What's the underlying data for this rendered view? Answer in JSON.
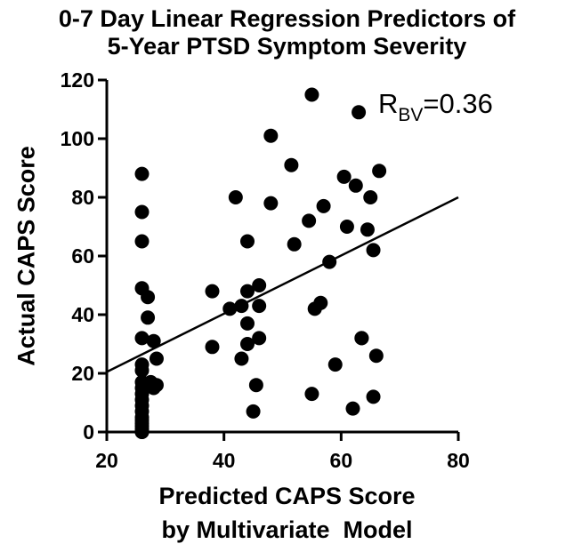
{
  "chart_data": {
    "type": "scatter",
    "title_line1": "0-7 Day Linear Regression Predictors of",
    "title_line2": "5-Year PTSD Symptom Severity",
    "xlabel_line1": "Predicted CAPS Score",
    "xlabel_line2": "by Multivariate  Model",
    "ylabel": "Actual CAPS Score",
    "xlim": [
      20,
      80
    ],
    "ylim": [
      0,
      120
    ],
    "xticks": [
      20,
      40,
      60,
      80
    ],
    "yticks": [
      0,
      20,
      40,
      60,
      80,
      100,
      120
    ],
    "annotation": {
      "base": "R",
      "subscript": "BV",
      "rest": "=0.36"
    },
    "regression_line": {
      "x": [
        20,
        80
      ],
      "y": [
        20.5,
        80
      ]
    },
    "points": {
      "x": [
        26,
        26,
        26,
        26,
        26,
        26,
        26,
        26,
        26,
        26,
        26,
        26,
        26,
        26,
        26,
        26,
        26,
        26,
        26,
        26,
        27,
        27,
        27.5,
        28,
        28,
        28.5,
        28.5,
        38,
        38,
        41,
        42,
        43,
        43,
        44,
        44,
        44,
        44,
        45,
        45.5,
        46,
        46,
        46,
        48,
        48,
        51.5,
        52,
        54.5,
        55,
        55,
        55.5,
        56.5,
        57,
        58,
        59,
        60.5,
        61,
        62,
        62.5,
        63,
        63.5,
        63.5,
        64.5,
        65,
        65.5,
        65.5,
        66,
        66.5
      ],
      "y": [
        88,
        75,
        65,
        49,
        32,
        23,
        21,
        17,
        15,
        13,
        11,
        9,
        7,
        5,
        4,
        3,
        2,
        1,
        0,
        0,
        46,
        39,
        17,
        15,
        31,
        25,
        16,
        48,
        29,
        42,
        80,
        43,
        25,
        65,
        48,
        37,
        30,
        7,
        16,
        50,
        43,
        32,
        101,
        78,
        91,
        64,
        72,
        115,
        13,
        42,
        44,
        77,
        58,
        23,
        87,
        70,
        8,
        84,
        109,
        32,
        32,
        69,
        80,
        62,
        12,
        26,
        89
      ]
    }
  }
}
